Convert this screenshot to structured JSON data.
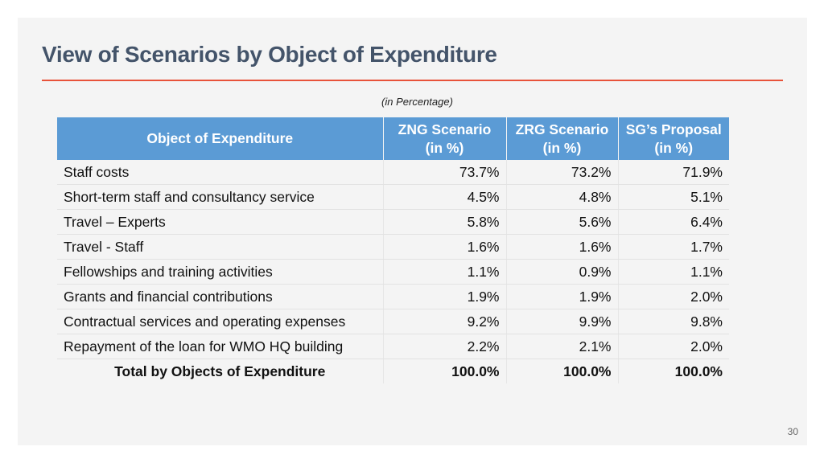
{
  "slide": {
    "title": "View of Scenarios by Object of Expenditure",
    "subtitle": "(in Percentage)",
    "page_number": "30",
    "colors": {
      "title": "#44546a",
      "accent_rule": "#e8533a",
      "header_fill": "#5b9bd5",
      "background": "#f4f4f4"
    }
  },
  "table": {
    "headers": [
      {
        "line1": "Object of Expenditure",
        "line2": ""
      },
      {
        "line1": "ZNG Scenario",
        "line2": "(in %)"
      },
      {
        "line1": "ZRG Scenario",
        "line2": "(in %)"
      },
      {
        "line1": "SG’s Proposal",
        "line2": "(in %)"
      }
    ],
    "rows": [
      {
        "label": "Staff costs",
        "zng": "73.7%",
        "zrg": "73.2%",
        "sg": "71.9%"
      },
      {
        "label": "Short-term staff and consultancy service",
        "zng": "4.5%",
        "zrg": "4.8%",
        "sg": "5.1%"
      },
      {
        "label": "Travel – Experts",
        "zng": "5.8%",
        "zrg": "5.6%",
        "sg": "6.4%"
      },
      {
        "label": "Travel - Staff",
        "zng": "1.6%",
        "zrg": "1.6%",
        "sg": "1.7%"
      },
      {
        "label": "Fellowships and training activities",
        "zng": "1.1%",
        "zrg": "0.9%",
        "sg": "1.1%"
      },
      {
        "label": "Grants and financial contributions",
        "zng": "1.9%",
        "zrg": "1.9%",
        "sg": "2.0%"
      },
      {
        "label": "Contractual services and operating expenses",
        "zng": "9.2%",
        "zrg": "9.9%",
        "sg": "9.8%"
      },
      {
        "label": "Repayment of the loan for WMO HQ building",
        "zng": "2.2%",
        "zrg": "2.1%",
        "sg": "2.0%"
      }
    ],
    "total": {
      "label": "Total by Objects of Expenditure",
      "zng": "100.0%",
      "zrg": "100.0%",
      "sg": "100.0%"
    }
  }
}
